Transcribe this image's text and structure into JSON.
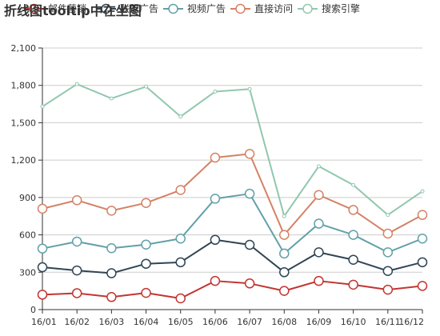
{
  "chart_data": {
    "type": "line",
    "title": "折线图tooltip中在坐图",
    "categories": [
      "16/01",
      "16/02",
      "16/03",
      "16/04",
      "16/05",
      "16/06",
      "16/07",
      "16/08",
      "16/09",
      "16/10",
      "16/11",
      "16/12"
    ],
    "ylim": [
      0,
      2100
    ],
    "yticks": [
      0,
      300,
      600,
      900,
      1200,
      1500,
      1800,
      2100
    ],
    "ytick_labels": [
      "0",
      "300",
      "600",
      "900",
      "1,200",
      "1,500",
      "1,800",
      "2,100"
    ],
    "grid": true,
    "legend_position": "top",
    "series": [
      {
        "name": "邮件营销",
        "color": "#c23531",
        "values": [
          120,
          132,
          101,
          134,
          90,
          230,
          210,
          150,
          230,
          200,
          160,
          190
        ]
      },
      {
        "name": "联盟广告",
        "color": "#2f4554",
        "values": [
          220,
          182,
          191,
          234,
          290,
          330,
          310,
          150,
          230,
          200,
          150,
          190
        ]
      },
      {
        "name": "视频广告",
        "color": "#61a0a8",
        "values": [
          150,
          232,
          201,
          154,
          190,
          330,
          410,
          150,
          230,
          200,
          150,
          190
        ]
      },
      {
        "name": "直接访问",
        "color": "#d48265",
        "values": [
          320,
          332,
          301,
          334,
          390,
          330,
          320,
          150,
          230,
          200,
          150,
          190
        ]
      },
      {
        "name": "搜索引擎",
        "color": "#91c7ae",
        "values": [
          820,
          932,
          901,
          934,
          590,
          530,
          520,
          150,
          230,
          200,
          150,
          190
        ]
      }
    ],
    "stacked": true
  }
}
